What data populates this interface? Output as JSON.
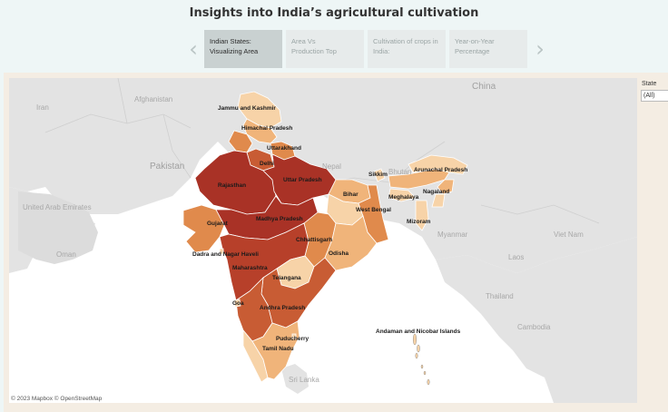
{
  "title": "Insights into India’s agricultural cultivation",
  "story": {
    "prev_icon": "chevron-left-icon",
    "next_icon": "chevron-right-icon",
    "points": [
      {
        "line1": "Indian States:",
        "line2": "Visualizing Area",
        "active": true
      },
      {
        "line1": "Area Vs",
        "line2": "Production Top",
        "active": false
      },
      {
        "line1": "Cultivation of crops in",
        "line2": "India:",
        "active": false
      },
      {
        "line1": "Year-on-Year",
        "line2": "Percentage",
        "active": false
      }
    ]
  },
  "filter": {
    "title": "State",
    "value": "(All)"
  },
  "map": {
    "attribution": "© 2023 Mapbox © OpenStreetMap",
    "colors": {
      "darkest": "#a93226",
      "dark": "#b7402a",
      "medium_dark": "#c85c34",
      "medium": "#e08a4c",
      "light": "#f0b47a",
      "lightest": "#f7d3a8"
    },
    "geography_labels": {
      "iran": "Iran",
      "afghanistan": "Afghanistan",
      "pakistan": "Pakistan",
      "china": "China",
      "nepal": "Nepal",
      "bhutan": "Bhutan",
      "myanmar": "Myanmar",
      "uae": "United Arab Emirates",
      "oman": "Oman",
      "laos": "Laos",
      "vietnam": "Viet Nam",
      "thailand": "Thailand",
      "cambodia": "Cambodia",
      "sri_lanka": "Sri Lanka"
    },
    "state_labels": {
      "jammu_kashmir": "Jammu and Kashmir",
      "himachal": "Himachal Pradesh",
      "uttarakhand": "Uttarakhand",
      "delhi": "Delhi",
      "rajasthan": "Rajasthan",
      "uttar_pradesh": "Uttar Pradesh",
      "bihar": "Bihar",
      "sikkim": "Sikkim",
      "arunachal": "Arunachal Pradesh",
      "meghalaya": "Meghalaya",
      "nagaland": "Nagaland",
      "west_bengal": "West Bengal",
      "mizoram": "Mizoram",
      "gujarat": "Gujarat",
      "madhya_pradesh": "Madhya Pradesh",
      "chhattisgarh": "Chhattisgarh",
      "odisha": "Odisha",
      "dadra": "Dadra and Nagar Haveli",
      "maharashtra": "Maharashtra",
      "telangana": "Telangana",
      "goa": "Goa",
      "andhra": "Andhra Pradesh",
      "puducherry": "Puducherry",
      "tamil_nadu": "Tamil Nadu",
      "andaman": "Andaman and Nicobar Islands"
    }
  }
}
